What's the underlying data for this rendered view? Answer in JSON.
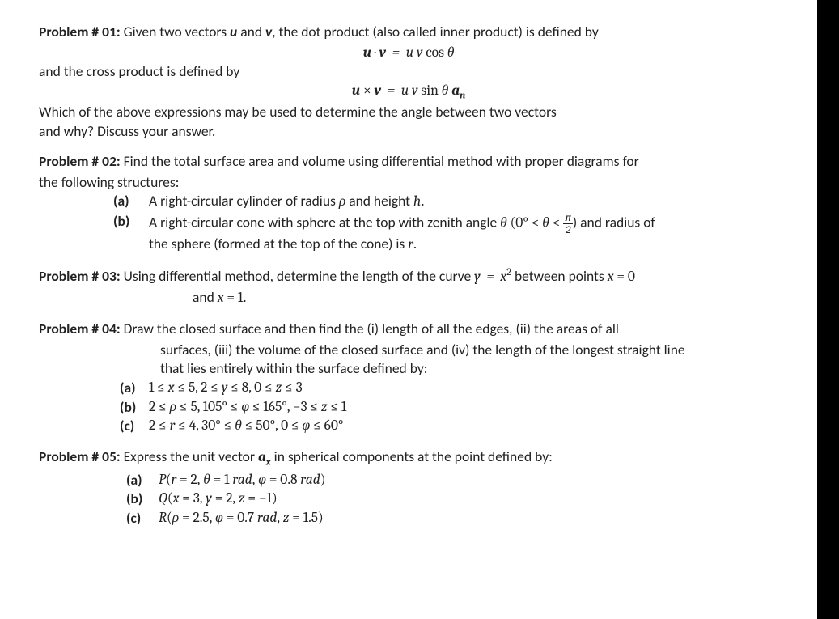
{
  "page": {
    "background": "#ffffff",
    "fontFamily": "Calibri, Arial, sans-serif",
    "fontSize": 17.5,
    "textColor": "#222222"
  },
  "p01": {
    "label": "Problem # 01:",
    "intro": " Given two vectors ",
    "u": "u",
    "and1": " and ",
    "v": "v",
    "intro2": ", the dot product (also called inner product) is defined by",
    "eq1": "u · v  =  u v cos θ",
    "line2": "and the cross product is defined by",
    "eq2": "u × v  =  u v sin θ aₙ",
    "line3": "Which of the above expressions may be used to determine the angle between two vectors",
    "line4": "and why? Discuss your answer."
  },
  "p02": {
    "label": "Problem # 02:",
    "intro": " Find the total surface area and volume using differential method with proper diagrams for",
    "line2": "the following structures:",
    "a_label": "(a)",
    "a_text1": "A right-circular cylinder of radius ",
    "a_rho": "ρ",
    "a_text2": " and height ",
    "a_h": "h",
    "a_text3": ".",
    "b_label": "(b)",
    "b_text1": "A right-circular cone with sphere at the top with zenith angle ",
    "b_theta": "θ",
    "b_text2": " (0° < ",
    "b_theta2": "θ",
    "b_text3": " < ",
    "b_frac_num": "π",
    "b_frac_den": "2",
    "b_text4": ") and radius of",
    "b_line2a": "the sphere (formed at the top of the cone) is ",
    "b_r": "r",
    "b_line2b": "."
  },
  "p03": {
    "label": "Problem # 03:",
    "text1": " Using differential method, determine the length of the curve ",
    "eq1": "y  =  x²",
    "text2": " between points ",
    "eq2": "x = 0",
    "line2a": "and ",
    "eq3": "x = 1",
    "line2b": "."
  },
  "p04": {
    "label": "Problem # 04:",
    "text1": " Draw the closed surface and then find the (i) length of all the edges, (ii) the areas of all",
    "line2": "surfaces, (iii) the volume of the closed surface and (iv) the length of the longest straight line",
    "line3": "that lies entirely within the surface defined by:",
    "a_label": "(a)",
    "a_eq": "1 ≤ x ≤ 5, 2 ≤ y ≤ 8, 0 ≤ z ≤ 3",
    "b_label": "(b)",
    "b_eq": "2 ≤ ρ ≤ 5, 105° ≤ φ ≤ 165°, −3 ≤ z ≤ 1",
    "c_label": "(c)",
    "c_eq": "2 ≤ r ≤ 4, 30° ≤ θ ≤ 50°, 0 ≤ φ ≤ 60°"
  },
  "p05": {
    "label": "Problem # 05:",
    "text1": " Express the unit vector ",
    "ax": "aₓ",
    "text2": " in spherical components at the point defined by:",
    "a_label": "(a)",
    "a_eq": "P(r = 2, θ = 1 rad, φ = 0.8 rad)",
    "b_label": "(b)",
    "b_eq": "Q(x = 3, y = 2, z = −1)",
    "c_label": "(c)",
    "c_eq": "R(ρ = 2.5, φ = 0.7 rad, z = 1.5)"
  }
}
